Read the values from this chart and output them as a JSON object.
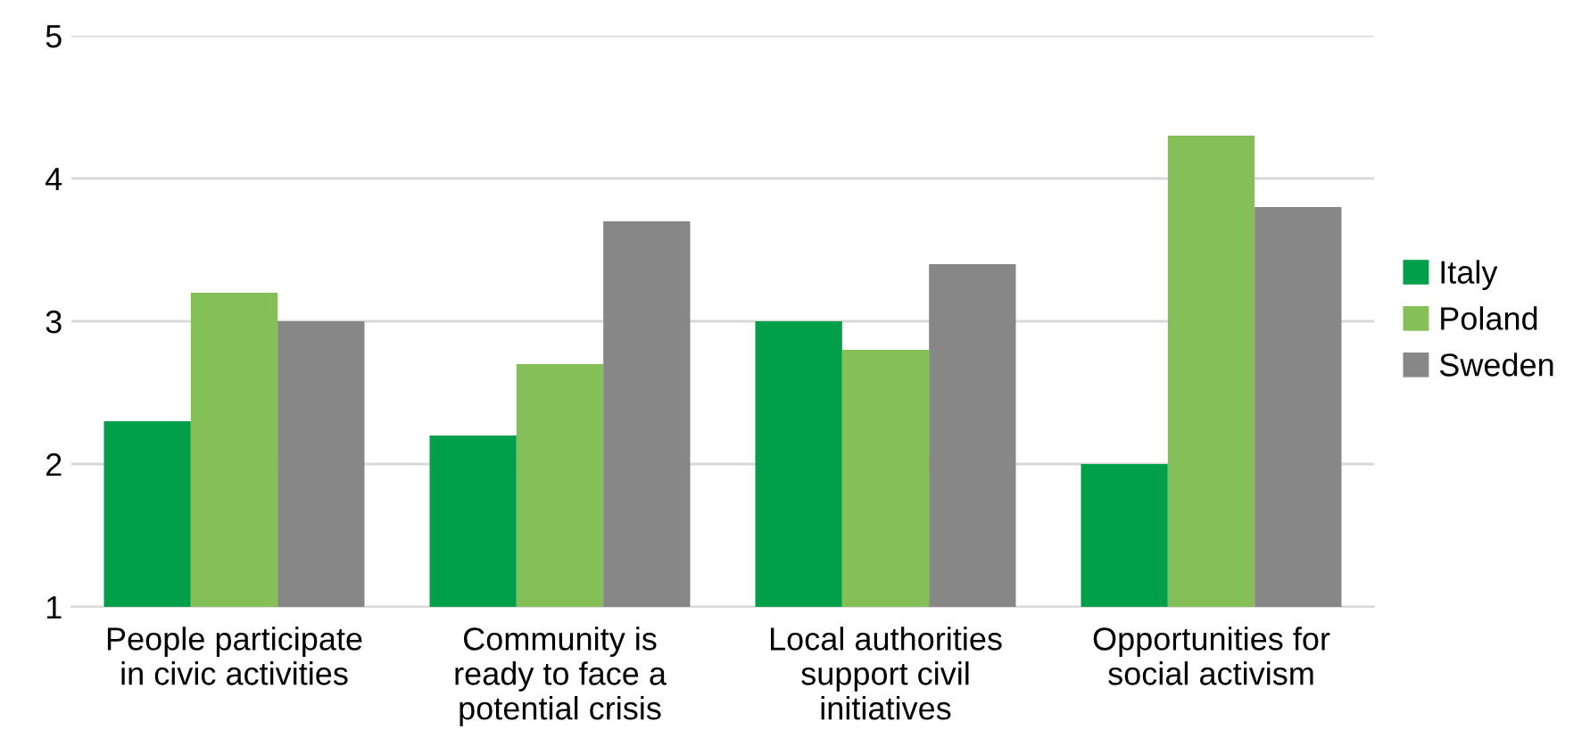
{
  "chart_data": {
    "type": "bar",
    "categories": [
      "People participate\nin civic activities",
      "Community is\nready to face a\npotential crisis",
      "Local authorities\nsupport civil\ninitiatives",
      "Opportunities for\nsocial activism"
    ],
    "series": [
      {
        "name": "Italy",
        "color": "#00a04b",
        "values": [
          2.3,
          2.2,
          3.0,
          2.0
        ]
      },
      {
        "name": "Poland",
        "color": "#84c057",
        "values": [
          3.2,
          2.7,
          2.8,
          4.3
        ]
      },
      {
        "name": "Sweden",
        "color": "#878787",
        "values": [
          3.0,
          3.7,
          3.4,
          3.8
        ]
      }
    ],
    "ylim": [
      1,
      5
    ],
    "yticks": [
      1,
      2,
      3,
      4,
      5
    ],
    "grid": "y",
    "legend": "right"
  }
}
